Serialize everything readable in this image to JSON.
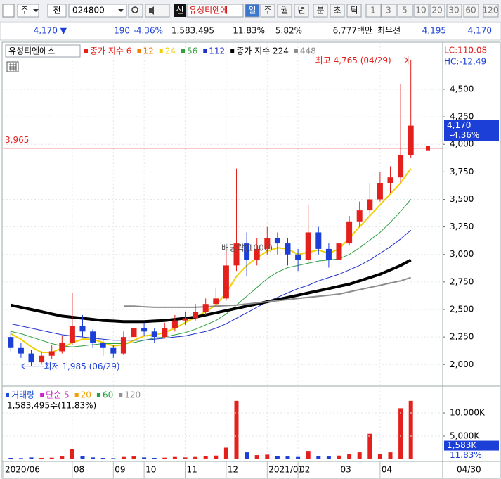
{
  "toolbar": {
    "market": "주",
    "kind": "전",
    "code": "024800",
    "tag": "신",
    "name": "유성티엔에",
    "periods": [
      "일",
      "주",
      "월",
      "년",
      "분",
      "초",
      "틱"
    ],
    "selected_period": 0,
    "intervals": [
      "1",
      "3",
      "5",
      "10",
      "20",
      "30",
      "60",
      "120"
    ]
  },
  "quote": {
    "price": "4,170 ▼",
    "change": "190",
    "rate": "-4.36%",
    "volume": "1,583,495",
    "volume_ratio": "11.83%",
    "turnover": "5.82%",
    "amount": "6,777백만",
    "best_label": "최우선",
    "ask": "4,195",
    "bid": "4,170"
  },
  "chart_data": {
    "type": "candlestick",
    "stock_name": "유성티엔에스",
    "grid": true,
    "categories": [
      "2020/06",
      null,
      null,
      null,
      null,
      null,
      "08",
      null,
      null,
      null,
      "09",
      null,
      null,
      "10",
      null,
      null,
      null,
      "11",
      null,
      null,
      null,
      "12",
      null,
      null,
      null,
      "2021/01",
      null,
      null,
      "02",
      null,
      null,
      null,
      "03",
      null,
      null,
      null,
      "04",
      null,
      null,
      null
    ],
    "end_date": "04/30",
    "open": [
      2250,
      2150,
      2100,
      2020,
      2080,
      2120,
      2200,
      2350,
      2300,
      2200,
      2150,
      2100,
      2250,
      2330,
      2300,
      2250,
      2330,
      2400,
      2420,
      2480,
      2550,
      2600,
      2900,
      3100,
      2950,
      3050,
      3150,
      3100,
      3000,
      2950,
      3200,
      3050,
      2950,
      3100,
      3300,
      3400,
      3500,
      3650,
      3700,
      3900
    ],
    "high": [
      2300,
      2200,
      2130,
      2120,
      2180,
      2260,
      2650,
      2450,
      2320,
      2230,
      2180,
      2300,
      2400,
      2380,
      2330,
      2380,
      2450,
      2480,
      2550,
      2600,
      2700,
      3050,
      3780,
      3200,
      3150,
      3250,
      3200,
      3150,
      3050,
      3450,
      3250,
      3100,
      3150,
      3350,
      3480,
      3650,
      3750,
      3800,
      4550,
      4765
    ],
    "low": [
      2120,
      2060,
      1985,
      2000,
      2050,
      2100,
      2180,
      2250,
      2150,
      2080,
      2060,
      2090,
      2220,
      2260,
      2200,
      2240,
      2300,
      2360,
      2400,
      2450,
      2520,
      2580,
      2850,
      2800,
      2900,
      3000,
      3000,
      2900,
      2850,
      2930,
      3000,
      2880,
      2900,
      3080,
      3250,
      3350,
      3480,
      3560,
      3650,
      3880
    ],
    "close": [
      2150,
      2100,
      2020,
      2080,
      2120,
      2200,
      2350,
      2300,
      2200,
      2150,
      2100,
      2250,
      2330,
      2300,
      2250,
      2330,
      2400,
      2420,
      2480,
      2550,
      2600,
      2900,
      3100,
      2950,
      3050,
      3150,
      3100,
      3000,
      2950,
      3200,
      3050,
      2950,
      3100,
      3300,
      3400,
      3500,
      3650,
      3700,
      3900,
      4170
    ],
    "up_color": "#e4201c",
    "down_color": "#1c3fd8",
    "ylim": [
      1810,
      4915
    ],
    "yticks": [
      {
        "value": 2000,
        "label": "2,000"
      },
      {
        "value": 2250,
        "label": "2,250"
      },
      {
        "value": 2500,
        "label": "2,500"
      },
      {
        "value": 2750,
        "label": "2,750"
      },
      {
        "value": 3000,
        "label": "3,000"
      },
      {
        "value": 3250,
        "label": "3,250"
      },
      {
        "value": 3500,
        "label": "3,500"
      },
      {
        "value": 3750,
        "label": "3,750"
      },
      {
        "value": 4000,
        "label": "4,000"
      },
      {
        "value": 4250,
        "label": "4,250"
      },
      {
        "value": 4500,
        "label": "4,500"
      }
    ],
    "legend_only": [
      {
        "name": "종가 지수 6",
        "color": "#e4201c"
      },
      {
        "name": "12",
        "color": "#f08000"
      }
    ],
    "series": [
      {
        "name": "24",
        "color": "#f0d000",
        "width": 2,
        "values": [
          2280,
          2230,
          2160,
          2110,
          2110,
          2150,
          2200,
          2230,
          2230,
          2200,
          2170,
          2180,
          2220,
          2260,
          2270,
          2290,
          2330,
          2380,
          2430,
          2480,
          2540,
          2650,
          2800,
          2900,
          2970,
          3030,
          3060,
          3050,
          3000,
          3020,
          3040,
          3010,
          3050,
          3150,
          3250,
          3350,
          3450,
          3550,
          3650,
          3780
        ]
      },
      {
        "name": "56",
        "color": "#30a040",
        "width": 1,
        "values": [
          2300,
          2280,
          2250,
          2220,
          2190,
          2170,
          2160,
          2170,
          2180,
          2190,
          2190,
          2190,
          2200,
          2220,
          2240,
          2250,
          2270,
          2290,
          2320,
          2360,
          2400,
          2460,
          2540,
          2620,
          2700,
          2780,
          2840,
          2880,
          2900,
          2920,
          2940,
          2950,
          2960,
          3000,
          3060,
          3130,
          3200,
          3290,
          3390,
          3500
        ]
      },
      {
        "name": "112",
        "color": "#2030c8",
        "width": 1,
        "values": [
          2370,
          2350,
          2330,
          2310,
          2290,
          2270,
          2260,
          2250,
          2240,
          2230,
          2220,
          2220,
          2220,
          2220,
          2230,
          2240,
          2250,
          2260,
          2280,
          2300,
          2330,
          2370,
          2420,
          2470,
          2520,
          2570,
          2610,
          2650,
          2690,
          2720,
          2760,
          2790,
          2820,
          2860,
          2900,
          2950,
          3010,
          3070,
          3140,
          3220
        ]
      },
      {
        "name": "종가 지수 224",
        "color": "#000000",
        "width": 4,
        "values": [
          2540,
          2520,
          2500,
          2480,
          2460,
          2440,
          2430,
          2420,
          2410,
          2400,
          2395,
          2390,
          2390,
          2390,
          2395,
          2400,
          2410,
          2420,
          2430,
          2450,
          2470,
          2490,
          2510,
          2530,
          2550,
          2570,
          2590,
          2610,
          2630,
          2650,
          2670,
          2690,
          2710,
          2730,
          2760,
          2790,
          2820,
          2860,
          2900,
          2950
        ]
      },
      {
        "name": "448",
        "color": "#8c8c8c",
        "width": 2,
        "values": [
          null,
          null,
          null,
          null,
          null,
          null,
          null,
          null,
          null,
          null,
          null,
          2530,
          2530,
          2525,
          2520,
          2520,
          2520,
          2520,
          2520,
          2525,
          2530,
          2535,
          2540,
          2550,
          2560,
          2570,
          2580,
          2590,
          2600,
          2610,
          2620,
          2630,
          2640,
          2660,
          2680,
          2700,
          2720,
          2740,
          2760,
          2790
        ]
      }
    ],
    "indicators": {
      "lc": "LC:110.08",
      "hc": "HC:-12.49"
    },
    "high_annotation": "최고 4,765 (04/29)",
    "low_annotation": "최저 1,985 (06/29)",
    "event_annotation": "배당락(1000)",
    "reference_line": {
      "value": 3965,
      "label": "3,965",
      "color": "#e4201c"
    },
    "last_price": {
      "value": 4170,
      "label": "4,170",
      "change": "-4.36%"
    },
    "volume": {
      "caption": "1,583,495주(11.83%)",
      "legend": [
        {
          "label": "거래량",
          "color": "#1e50d8"
        },
        {
          "label": "단순 5",
          "color": "#d020d0"
        },
        {
          "label": "20",
          "color": "#f0a000"
        },
        {
          "label": "60",
          "color": "#20a040"
        },
        {
          "label": "120",
          "color": "#909090"
        }
      ],
      "values": [
        300,
        250,
        400,
        300,
        350,
        600,
        2200,
        700,
        400,
        300,
        250,
        500,
        600,
        400,
        300,
        350,
        500,
        400,
        500,
        700,
        800,
        2500,
        12600,
        1500,
        900,
        1000,
        700,
        600,
        500,
        1800,
        700,
        600,
        800,
        1200,
        1500,
        5500,
        1200,
        1500,
        11000,
        12600
      ],
      "ylim": [
        0,
        14850
      ],
      "yticks": [
        {
          "value": 5000,
          "label": "5,000K"
        },
        {
          "value": 10000,
          "label": "10,000K"
        }
      ],
      "current": {
        "value": 1583,
        "label": "1,583K",
        "ratio": "11.83%"
      }
    }
  }
}
